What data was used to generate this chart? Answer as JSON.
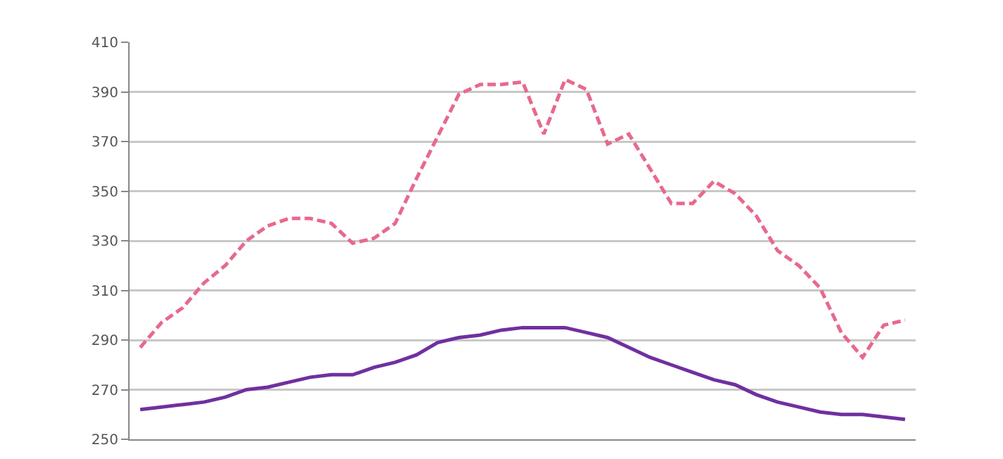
{
  "chart_data": {
    "type": "line",
    "categories": [
      null,
      null,
      null,
      null,
      null,
      null,
      null,
      null,
      null,
      null,
      null,
      null,
      null,
      null,
      null,
      null,
      null,
      null,
      null,
      null,
      null,
      null,
      null,
      null,
      null,
      null,
      null,
      null,
      null,
      null,
      null,
      null,
      null,
      null,
      null,
      null,
      null
    ],
    "series": [
      {
        "color": "#e8698c",
        "line_style": "dashed",
        "values": [
          287,
          297,
          303,
          313,
          320,
          330,
          336,
          339,
          339,
          337,
          329,
          331,
          337,
          355,
          372,
          389,
          393,
          393,
          394,
          373,
          395,
          391,
          369,
          373,
          359,
          345,
          345,
          354,
          349,
          340,
          326,
          320,
          311,
          293,
          283,
          296,
          298
        ]
      },
      {
        "color": "#7030a0",
        "line_style": "solid",
        "values": [
          262,
          263,
          264,
          265,
          267,
          270,
          271,
          273,
          275,
          276,
          276,
          279,
          281,
          284,
          289,
          291,
          292,
          294,
          295,
          295,
          295,
          293,
          291,
          287,
          283,
          280,
          277,
          274,
          272,
          268,
          265,
          263,
          261,
          260,
          260,
          259,
          258
        ]
      }
    ],
    "ylim": [
      250,
      410
    ],
    "yticks": [
      250,
      270,
      290,
      310,
      330,
      350,
      370,
      390,
      410
    ],
    "grid": "y",
    "marker": "none",
    "tick_labels": "y"
  }
}
